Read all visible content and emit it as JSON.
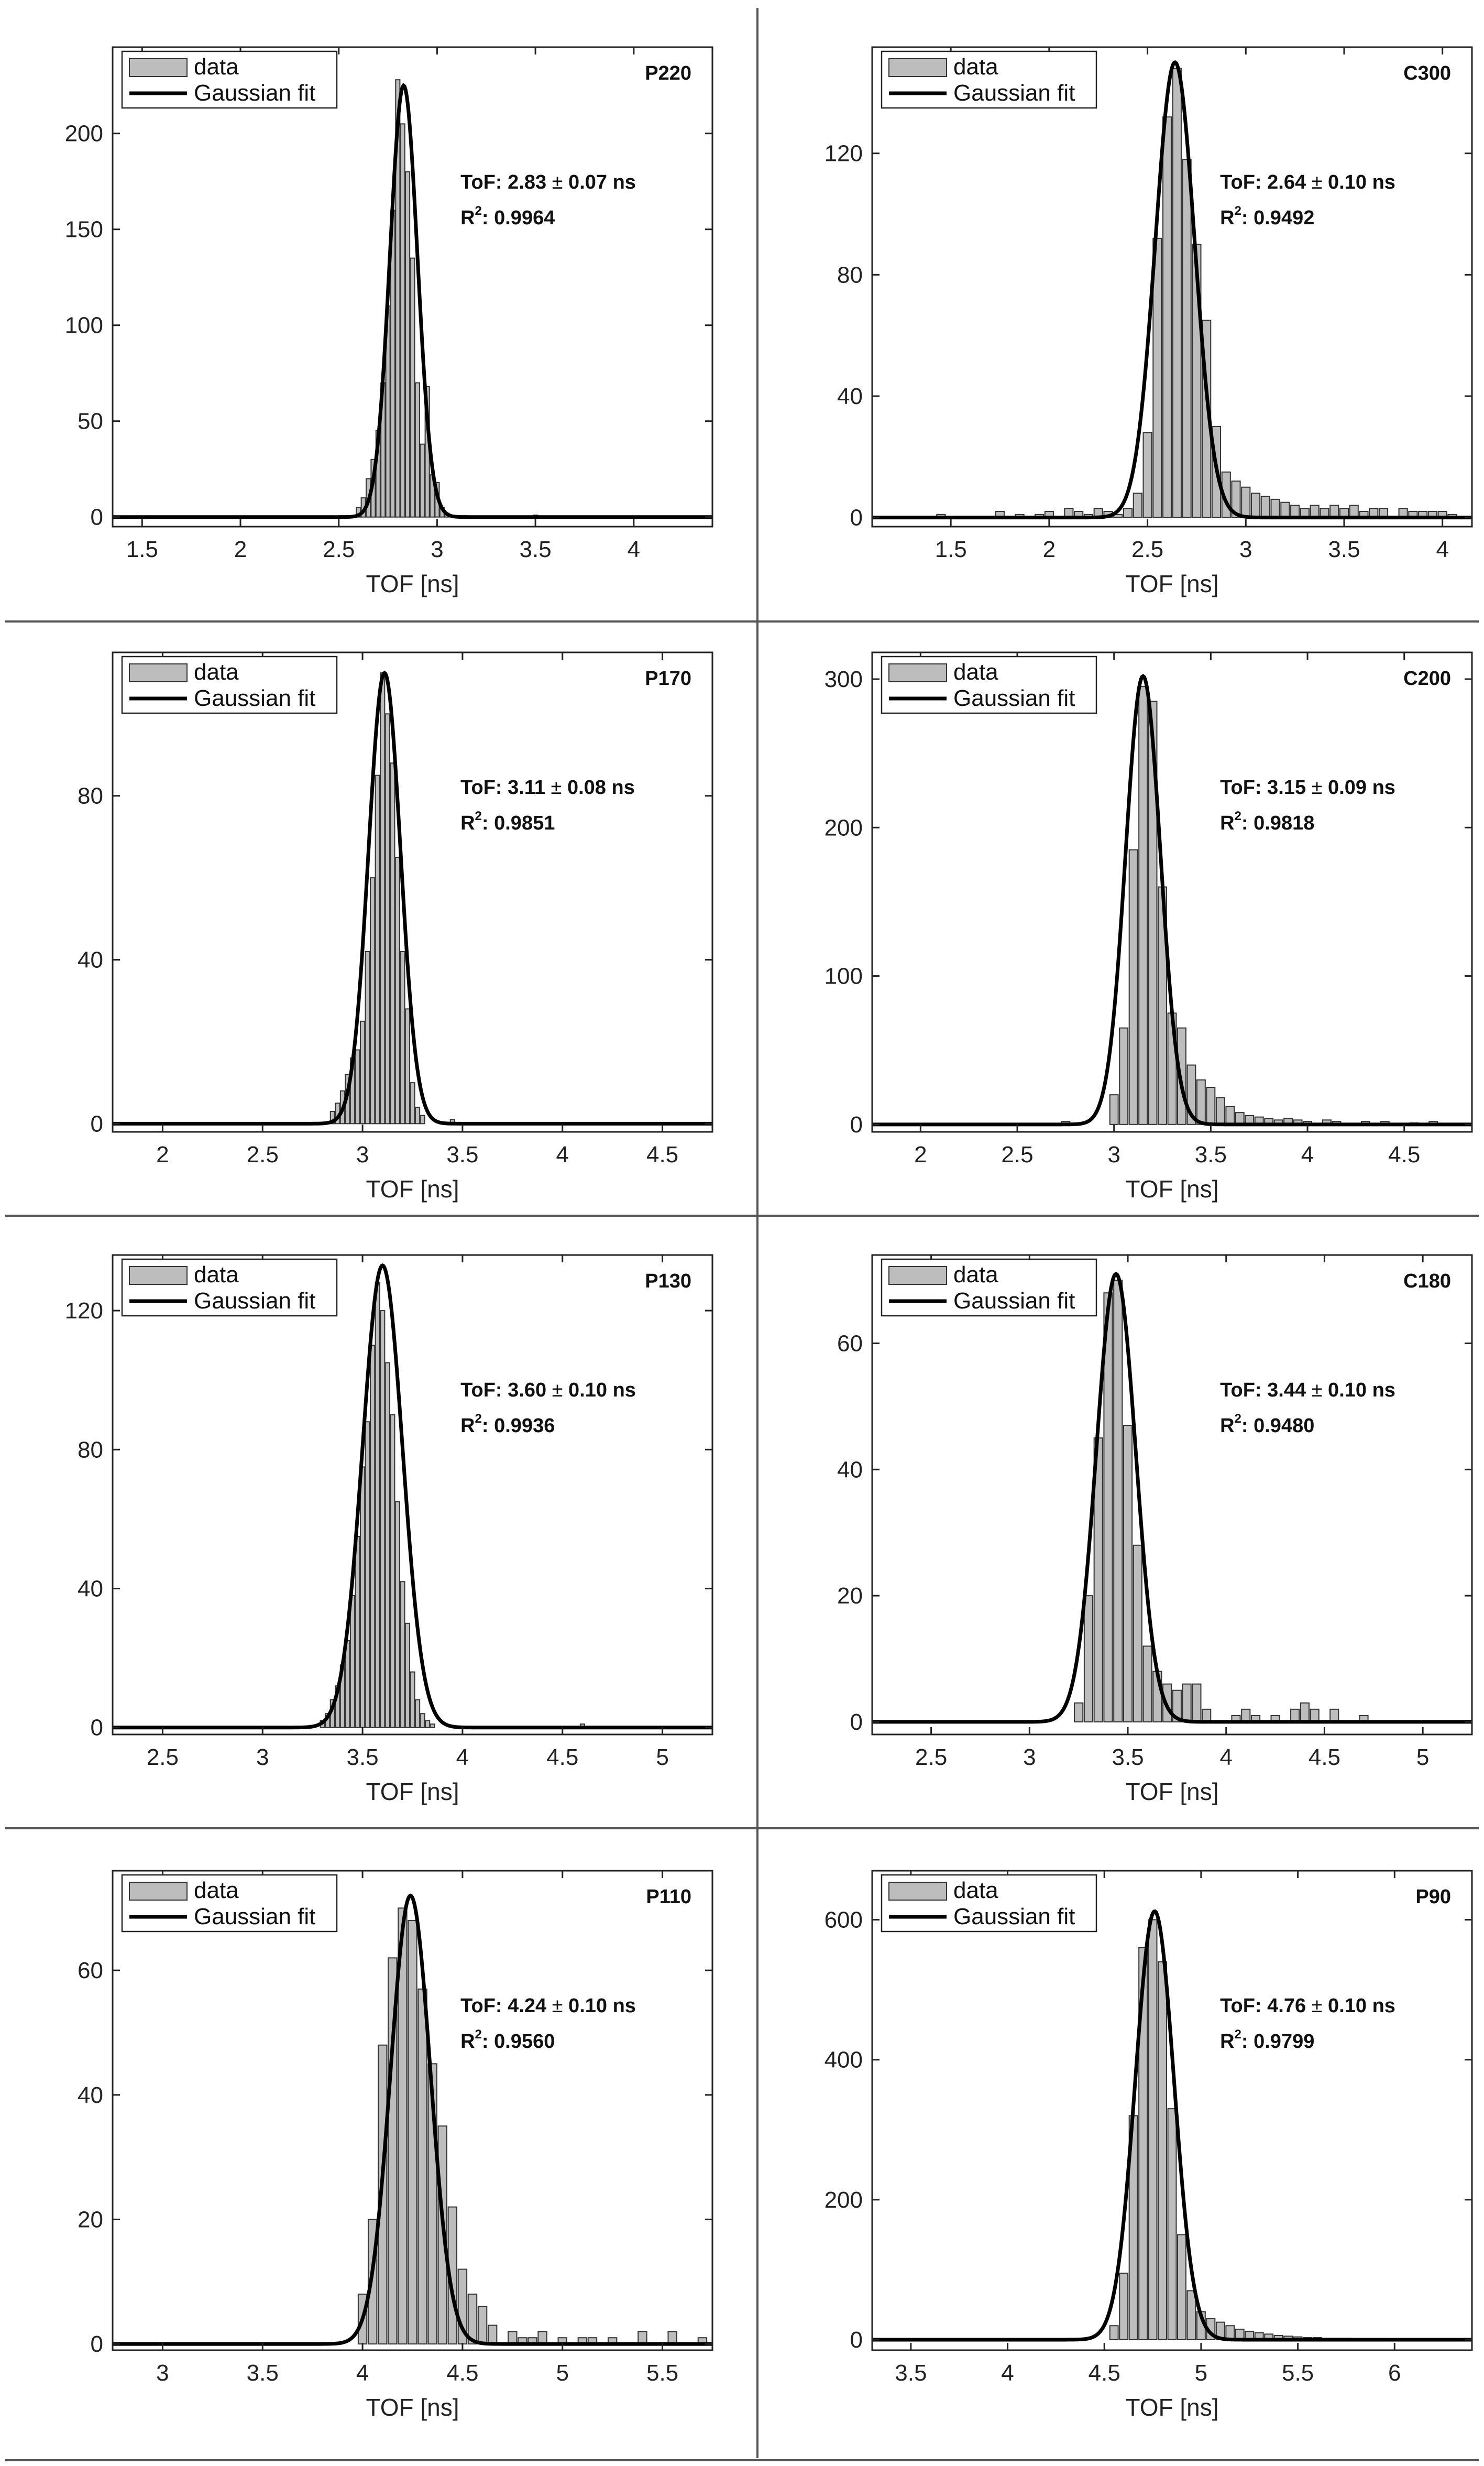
{
  "figure": {
    "legend": {
      "data_label": "data",
      "fit_label": "Gaussian fit"
    },
    "xlabel": "TOF [ns]",
    "colors": {
      "bar_fill": "#bdbdbd",
      "bar_stroke": "#333333",
      "fit_line": "#000000",
      "axes": "#222222",
      "divider": "#555555"
    }
  },
  "chart_data": [
    {
      "type": "bar",
      "panel": "P220",
      "title": "P220",
      "xlabel": "TOF [ns]",
      "ylabel": "",
      "tof_label": "ToF: 2.83",
      "tof_err": "0.07 ns",
      "r2_label": "0.9964",
      "xlim": [
        1.35,
        4.4
      ],
      "ylim": [
        -5,
        245
      ],
      "xticks": [
        1.5,
        2,
        2.5,
        3,
        3.5,
        4
      ],
      "xtick_labels": [
        "1.5",
        "2",
        "2.5",
        "3",
        "3.5",
        "4"
      ],
      "yticks": [
        0,
        50,
        100,
        150,
        200
      ],
      "ytick_labels": [
        "0",
        "50",
        "100",
        "150",
        "200"
      ],
      "bin_width": 0.025,
      "bins": [
        [
          2.6,
          5
        ],
        [
          2.625,
          10
        ],
        [
          2.65,
          20
        ],
        [
          2.675,
          30
        ],
        [
          2.7,
          45
        ],
        [
          2.725,
          70
        ],
        [
          2.75,
          110
        ],
        [
          2.775,
          160
        ],
        [
          2.8,
          228
        ],
        [
          2.825,
          205
        ],
        [
          2.85,
          180
        ],
        [
          2.875,
          135
        ],
        [
          2.9,
          70
        ],
        [
          2.925,
          38
        ],
        [
          2.95,
          68
        ],
        [
          2.975,
          22
        ],
        [
          3.0,
          18
        ],
        [
          3.025,
          5
        ],
        [
          3.05,
          2
        ],
        [
          3.5,
          1
        ]
      ],
      "fit": {
        "mu": 2.83,
        "sigma": 0.07,
        "amp": 225
      }
    },
    {
      "type": "bar",
      "panel": "C300",
      "title": "C300",
      "xlabel": "TOF [ns]",
      "ylabel": "",
      "tof_label": "ToF: 2.64",
      "tof_err": "0.10 ns",
      "r2_label": "0.9492",
      "xlim": [
        1.1,
        4.15
      ],
      "ylim": [
        -3,
        155
      ],
      "xticks": [
        1.5,
        2,
        2.5,
        3,
        3.5,
        4
      ],
      "xtick_labels": [
        "1.5",
        "2",
        "2.5",
        "3",
        "3.5",
        "4"
      ],
      "yticks": [
        0,
        40,
        80,
        120
      ],
      "ytick_labels": [
        "0",
        "40",
        "80",
        "120"
      ],
      "bin_width": 0.05,
      "bins": [
        [
          1.45,
          1
        ],
        [
          1.75,
          2
        ],
        [
          1.85,
          1
        ],
        [
          1.95,
          1
        ],
        [
          2.0,
          2
        ],
        [
          2.1,
          3
        ],
        [
          2.15,
          2
        ],
        [
          2.2,
          1
        ],
        [
          2.25,
          3
        ],
        [
          2.3,
          2
        ],
        [
          2.35,
          1
        ],
        [
          2.4,
          3
        ],
        [
          2.45,
          8
        ],
        [
          2.5,
          28
        ],
        [
          2.55,
          92
        ],
        [
          2.6,
          132
        ],
        [
          2.65,
          148
        ],
        [
          2.7,
          118
        ],
        [
          2.75,
          90
        ],
        [
          2.8,
          65
        ],
        [
          2.85,
          30
        ],
        [
          2.9,
          15
        ],
        [
          2.95,
          12
        ],
        [
          3.0,
          10
        ],
        [
          3.05,
          8
        ],
        [
          3.1,
          7
        ],
        [
          3.15,
          6
        ],
        [
          3.2,
          5
        ],
        [
          3.25,
          4
        ],
        [
          3.3,
          3
        ],
        [
          3.35,
          4
        ],
        [
          3.4,
          3
        ],
        [
          3.45,
          4
        ],
        [
          3.5,
          3
        ],
        [
          3.55,
          4
        ],
        [
          3.6,
          2
        ],
        [
          3.65,
          3
        ],
        [
          3.7,
          3
        ],
        [
          3.8,
          3
        ],
        [
          3.85,
          2
        ],
        [
          3.9,
          2
        ],
        [
          3.95,
          2
        ],
        [
          4.0,
          2
        ],
        [
          4.05,
          1
        ]
      ],
      "fit": {
        "mu": 2.64,
        "sigma": 0.1,
        "amp": 150
      }
    },
    {
      "type": "bar",
      "panel": "P170",
      "title": "P170",
      "xlabel": "TOF [ns]",
      "ylabel": "",
      "tof_label": "ToF: 3.11",
      "tof_err": "0.08 ns",
      "r2_label": "0.9851",
      "xlim": [
        1.75,
        4.75
      ],
      "ylim": [
        -2,
        115
      ],
      "xticks": [
        2,
        2.5,
        3,
        3.5,
        4,
        4.5
      ],
      "xtick_labels": [
        "2",
        "2.5",
        "3",
        "3.5",
        "4",
        "4.5"
      ],
      "yticks": [
        0,
        40,
        80
      ],
      "ytick_labels": [
        "0",
        "40",
        "80"
      ],
      "bin_width": 0.025,
      "bins": [
        [
          2.85,
          3
        ],
        [
          2.875,
          5
        ],
        [
          2.9,
          8
        ],
        [
          2.925,
          12
        ],
        [
          2.95,
          16
        ],
        [
          2.975,
          18
        ],
        [
          3.0,
          25
        ],
        [
          3.025,
          42
        ],
        [
          3.05,
          60
        ],
        [
          3.075,
          85
        ],
        [
          3.1,
          110
        ],
        [
          3.125,
          100
        ],
        [
          3.15,
          88
        ],
        [
          3.175,
          65
        ],
        [
          3.2,
          42
        ],
        [
          3.225,
          28
        ],
        [
          3.25,
          10
        ],
        [
          3.275,
          4
        ],
        [
          3.3,
          2
        ],
        [
          3.45,
          1
        ]
      ],
      "fit": {
        "mu": 3.11,
        "sigma": 0.08,
        "amp": 110
      }
    },
    {
      "type": "bar",
      "panel": "C200",
      "title": "C200",
      "xlabel": "TOF [ns]",
      "ylabel": "",
      "tof_label": "ToF: 3.15",
      "tof_err": "0.09 ns",
      "r2_label": "0.9818",
      "xlim": [
        1.75,
        4.85
      ],
      "ylim": [
        -5,
        318
      ],
      "xticks": [
        2,
        2.5,
        3,
        3.5,
        4,
        4.5
      ],
      "xtick_labels": [
        "2",
        "2.5",
        "3",
        "3.5",
        "4",
        "4.5"
      ],
      "yticks": [
        0,
        100,
        200,
        300
      ],
      "ytick_labels": [
        "0",
        "100",
        "200",
        "300"
      ],
      "bin_width": 0.05,
      "bins": [
        [
          2.75,
          2
        ],
        [
          3.0,
          20
        ],
        [
          3.05,
          65
        ],
        [
          3.1,
          185
        ],
        [
          3.15,
          295
        ],
        [
          3.2,
          285
        ],
        [
          3.25,
          160
        ],
        [
          3.3,
          75
        ],
        [
          3.35,
          65
        ],
        [
          3.4,
          40
        ],
        [
          3.45,
          30
        ],
        [
          3.5,
          25
        ],
        [
          3.55,
          18
        ],
        [
          3.6,
          12
        ],
        [
          3.65,
          8
        ],
        [
          3.7,
          6
        ],
        [
          3.75,
          5
        ],
        [
          3.8,
          4
        ],
        [
          3.85,
          3
        ],
        [
          3.9,
          4
        ],
        [
          3.95,
          3
        ],
        [
          4.0,
          2
        ],
        [
          4.1,
          3
        ],
        [
          4.15,
          2
        ],
        [
          4.3,
          2
        ],
        [
          4.4,
          2
        ],
        [
          4.55,
          1
        ],
        [
          4.65,
          2
        ]
      ],
      "fit": {
        "mu": 3.15,
        "sigma": 0.09,
        "amp": 302
      }
    },
    {
      "type": "bar",
      "panel": "P130",
      "title": "P130",
      "xlabel": "TOF [ns]",
      "ylabel": "",
      "tof_label": "ToF: 3.60",
      "tof_err": "0.10 ns",
      "r2_label": "0.9936",
      "xlim": [
        2.25,
        5.25
      ],
      "ylim": [
        -2,
        136
      ],
      "xticks": [
        2.5,
        3,
        3.5,
        4,
        4.5,
        5
      ],
      "xtick_labels": [
        "2.5",
        "3",
        "3.5",
        "4",
        "4.5",
        "5"
      ],
      "yticks": [
        0,
        40,
        80,
        120
      ],
      "ytick_labels": [
        "0",
        "40",
        "80",
        "120"
      ],
      "bin_width": 0.025,
      "bins": [
        [
          3.3,
          2
        ],
        [
          3.325,
          4
        ],
        [
          3.35,
          8
        ],
        [
          3.375,
          12
        ],
        [
          3.4,
          18
        ],
        [
          3.425,
          25
        ],
        [
          3.45,
          38
        ],
        [
          3.475,
          55
        ],
        [
          3.5,
          75
        ],
        [
          3.525,
          88
        ],
        [
          3.55,
          110
        ],
        [
          3.575,
          128
        ],
        [
          3.6,
          120
        ],
        [
          3.625,
          105
        ],
        [
          3.65,
          90
        ],
        [
          3.675,
          65
        ],
        [
          3.7,
          42
        ],
        [
          3.725,
          30
        ],
        [
          3.75,
          16
        ],
        [
          3.775,
          8
        ],
        [
          3.8,
          4
        ],
        [
          3.825,
          2
        ],
        [
          3.85,
          1
        ],
        [
          4.6,
          1
        ]
      ],
      "fit": {
        "mu": 3.6,
        "sigma": 0.1,
        "amp": 133
      }
    },
    {
      "type": "bar",
      "panel": "C180",
      "title": "C180",
      "xlabel": "TOF [ns]",
      "ylabel": "",
      "tof_label": "ToF: 3.44",
      "tof_err": "0.10 ns",
      "r2_label": "0.9480",
      "xlim": [
        2.2,
        5.25
      ],
      "ylim": [
        -2,
        74
      ],
      "xticks": [
        2.5,
        3,
        3.5,
        4,
        4.5,
        5
      ],
      "xtick_labels": [
        "2.5",
        "3",
        "3.5",
        "4",
        "4.5",
        "5"
      ],
      "yticks": [
        0,
        20,
        40,
        60
      ],
      "ytick_labels": [
        "0",
        "20",
        "40",
        "60"
      ],
      "bin_width": 0.05,
      "bins": [
        [
          3.25,
          3
        ],
        [
          3.3,
          20
        ],
        [
          3.35,
          45
        ],
        [
          3.4,
          68
        ],
        [
          3.45,
          70
        ],
        [
          3.5,
          47
        ],
        [
          3.55,
          28
        ],
        [
          3.6,
          12
        ],
        [
          3.65,
          8
        ],
        [
          3.7,
          6
        ],
        [
          3.75,
          5
        ],
        [
          3.8,
          6
        ],
        [
          3.85,
          6
        ],
        [
          3.9,
          2
        ],
        [
          4.05,
          1
        ],
        [
          4.1,
          2
        ],
        [
          4.15,
          1
        ],
        [
          4.25,
          1
        ],
        [
          4.35,
          2
        ],
        [
          4.4,
          3
        ],
        [
          4.45,
          2
        ],
        [
          4.55,
          2
        ],
        [
          4.7,
          1
        ]
      ],
      "fit": {
        "mu": 3.44,
        "sigma": 0.1,
        "amp": 71
      }
    },
    {
      "type": "bar",
      "panel": "P110",
      "title": "P110",
      "xlabel": "TOF [ns]",
      "ylabel": "",
      "tof_label": "ToF: 4.24",
      "tof_err": "0.10 ns",
      "r2_label": "0.9560",
      "xlim": [
        2.75,
        5.75
      ],
      "ylim": [
        -1,
        76
      ],
      "xticks": [
        3,
        3.5,
        4,
        4.5,
        5,
        5.5
      ],
      "xtick_labels": [
        "3",
        "3.5",
        "4",
        "4.5",
        "5",
        "5.5"
      ],
      "yticks": [
        0,
        20,
        40,
        60
      ],
      "ytick_labels": [
        "0",
        "20",
        "40",
        "60"
      ],
      "bin_width": 0.05,
      "bins": [
        [
          4.0,
          8
        ],
        [
          4.05,
          20
        ],
        [
          4.1,
          48
        ],
        [
          4.15,
          62
        ],
        [
          4.2,
          70
        ],
        [
          4.25,
          68
        ],
        [
          4.3,
          57
        ],
        [
          4.35,
          45
        ],
        [
          4.4,
          35
        ],
        [
          4.45,
          22
        ],
        [
          4.5,
          12
        ],
        [
          4.55,
          8
        ],
        [
          4.6,
          6
        ],
        [
          4.65,
          3
        ],
        [
          4.75,
          2
        ],
        [
          4.8,
          1
        ],
        [
          4.85,
          1
        ],
        [
          4.9,
          2
        ],
        [
          5.0,
          1
        ],
        [
          5.1,
          1
        ],
        [
          5.15,
          1
        ],
        [
          5.25,
          1
        ],
        [
          5.4,
          2
        ],
        [
          5.55,
          2
        ],
        [
          5.7,
          1
        ]
      ],
      "fit": {
        "mu": 4.24,
        "sigma": 0.1,
        "amp": 72
      }
    },
    {
      "type": "bar",
      "panel": "P90",
      "title": "P90",
      "xlabel": "TOF [ns]",
      "ylabel": "",
      "tof_label": "ToF: 4.76",
      "tof_err": "0.10 ns",
      "r2_label": "0.9799",
      "xlim": [
        3.3,
        6.4
      ],
      "ylim": [
        -15,
        670
      ],
      "xticks": [
        3.5,
        4,
        4.5,
        5,
        5.5,
        6
      ],
      "xtick_labels": [
        "3.5",
        "4",
        "4.5",
        "5",
        "5.5",
        "6"
      ],
      "yticks": [
        0,
        200,
        400,
        600
      ],
      "ytick_labels": [
        "0",
        "200",
        "400",
        "600"
      ],
      "bin_width": 0.05,
      "bins": [
        [
          4.55,
          20
        ],
        [
          4.6,
          95
        ],
        [
          4.65,
          320
        ],
        [
          4.7,
          560
        ],
        [
          4.75,
          600
        ],
        [
          4.8,
          540
        ],
        [
          4.85,
          330
        ],
        [
          4.9,
          150
        ],
        [
          4.95,
          70
        ],
        [
          5.0,
          40
        ],
        [
          5.05,
          30
        ],
        [
          5.1,
          25
        ],
        [
          5.15,
          20
        ],
        [
          5.2,
          15
        ],
        [
          5.25,
          12
        ],
        [
          5.3,
          10
        ],
        [
          5.35,
          8
        ],
        [
          5.4,
          6
        ],
        [
          5.45,
          5
        ],
        [
          5.5,
          4
        ],
        [
          5.55,
          3
        ],
        [
          5.6,
          3
        ],
        [
          5.65,
          2
        ],
        [
          5.7,
          2
        ],
        [
          5.75,
          2
        ],
        [
          5.8,
          1
        ],
        [
          5.9,
          1
        ],
        [
          6.0,
          1
        ]
      ],
      "fit": {
        "mu": 4.76,
        "sigma": 0.1,
        "amp": 612
      }
    }
  ]
}
